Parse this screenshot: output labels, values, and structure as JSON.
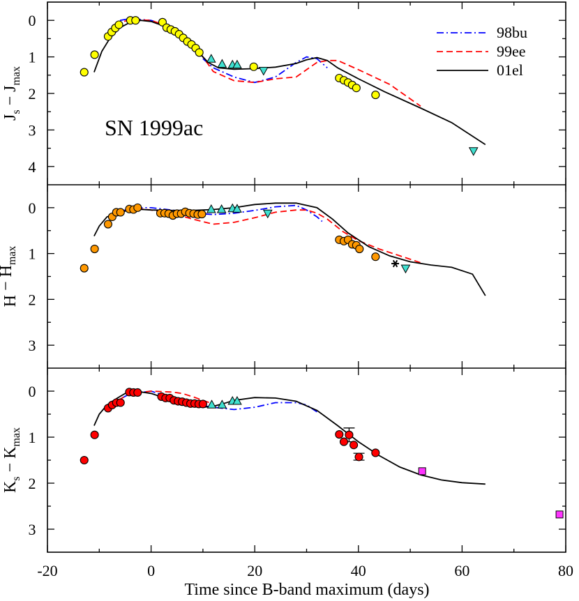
{
  "chart_data": {
    "type": "scatter",
    "x_label": "Time since B-band maximum (days)",
    "x_ticks": [
      "-20",
      "0",
      "20",
      "40",
      "60",
      "80"
    ],
    "xlim": [
      -20,
      80
    ],
    "legend": {
      "placement": "top-right",
      "entries": [
        {
          "name": "98bu",
          "color": "#0000ff",
          "style": "dash-dot"
        },
        {
          "name": "99ee",
          "color": "#ff0000",
          "style": "dashed"
        },
        {
          "name": "01el",
          "color": "#000000",
          "style": "solid"
        }
      ]
    },
    "annotation": "SN 1999ac",
    "panels": [
      {
        "id": "J",
        "ylabel_main": "J",
        "ylabel_sub1": "s",
        "ylabel_mid": " − J",
        "ylabel_sub2": "max",
        "ylim": [
          4.5,
          -0.5
        ],
        "y_ticks": [
          "0",
          "1",
          "2",
          "3",
          "4"
        ],
        "marker_color": "#ffff00",
        "circles": [
          [
            -12.9,
            1.42
          ],
          [
            -10.9,
            0.94
          ],
          [
            -8.3,
            0.44
          ],
          [
            -7.6,
            0.32
          ],
          [
            -6.9,
            0.21
          ],
          [
            -6.2,
            0.12
          ],
          [
            -4.0,
            0.0
          ],
          [
            -3.0,
            0.0
          ],
          [
            2.2,
            0.05
          ],
          [
            3.0,
            0.2
          ],
          [
            3.8,
            0.25
          ],
          [
            4.6,
            0.3
          ],
          [
            5.4,
            0.38
          ],
          [
            6.2,
            0.48
          ],
          [
            7.0,
            0.58
          ],
          [
            7.8,
            0.66
          ],
          [
            8.6,
            0.76
          ],
          [
            9.3,
            0.88
          ],
          [
            19.8,
            1.27
          ],
          [
            36.3,
            1.58
          ],
          [
            37.2,
            1.64
          ],
          [
            38.0,
            1.7
          ],
          [
            38.8,
            1.77
          ],
          [
            39.6,
            1.85
          ],
          [
            43.3,
            2.04
          ]
        ],
        "triangles_up": [
          [
            11.6,
            1.06
          ],
          [
            13.7,
            1.2
          ],
          [
            15.7,
            1.22
          ],
          [
            16.6,
            1.22
          ]
        ],
        "triangles_down": [
          [
            21.7,
            1.37
          ],
          [
            62.2,
            3.57
          ]
        ],
        "squares": [],
        "stars": [],
        "error_bars": [],
        "curves": {
          "98bu": [
            [
              -6,
              0.0
            ],
            [
              -4,
              -0.05
            ],
            [
              0,
              0.0
            ],
            [
              4,
              0.2
            ],
            [
              8,
              0.65
            ],
            [
              10,
              1.05
            ],
            [
              12,
              1.3
            ],
            [
              16,
              1.55
            ],
            [
              20,
              1.7
            ],
            [
              24,
              1.55
            ],
            [
              28,
              1.15
            ],
            [
              30,
              1.0
            ],
            [
              32,
              1.05
            ],
            [
              34,
              1.3
            ]
          ],
          "99ee": [
            [
              -7,
              0.1
            ],
            [
              -4,
              -0.02
            ],
            [
              0,
              0.0
            ],
            [
              4,
              0.2
            ],
            [
              8,
              0.6
            ],
            [
              10,
              1.0
            ],
            [
              12,
              1.4
            ],
            [
              16,
              1.65
            ],
            [
              20,
              1.7
            ],
            [
              24,
              1.6
            ],
            [
              28,
              1.55
            ],
            [
              30,
              1.35
            ],
            [
              32,
              1.15
            ],
            [
              34,
              1.1
            ],
            [
              36,
              1.1
            ],
            [
              40,
              1.35
            ],
            [
              46,
              1.75
            ],
            [
              52,
              2.35
            ]
          ],
          "01el": [
            [
              -11,
              1.42
            ],
            [
              -9.5,
              0.85
            ],
            [
              -8,
              0.5
            ],
            [
              -6,
              0.2
            ],
            [
              -4,
              0.05
            ],
            [
              -2,
              0.0
            ],
            [
              0,
              0.03
            ],
            [
              3,
              0.18
            ],
            [
              6,
              0.48
            ],
            [
              9,
              0.85
            ],
            [
              11,
              1.15
            ],
            [
              13,
              1.3
            ],
            [
              16,
              1.34
            ],
            [
              20,
              1.32
            ],
            [
              24,
              1.28
            ],
            [
              28,
              1.18
            ],
            [
              30,
              1.08
            ],
            [
              32,
              1.02
            ],
            [
              34,
              1.1
            ],
            [
              36,
              1.3
            ],
            [
              40,
              1.6
            ],
            [
              45,
              1.95
            ],
            [
              52,
              2.4
            ],
            [
              58,
              2.8
            ],
            [
              64.5,
              3.4
            ]
          ]
        }
      },
      {
        "id": "H",
        "ylabel_main": "H",
        "ylabel_sub1": "",
        "ylabel_mid": " − H",
        "ylabel_sub2": "max",
        "ylim": [
          3.5,
          -0.5
        ],
        "y_ticks": [
          "0",
          "1",
          "2",
          "3"
        ],
        "marker_color": "#ff9800",
        "circles": [
          [
            -12.9,
            1.32
          ],
          [
            -10.9,
            0.9
          ],
          [
            -8.3,
            0.36
          ],
          [
            -7.5,
            0.2
          ],
          [
            -6.7,
            0.1
          ],
          [
            -5.9,
            0.1
          ],
          [
            -4.2,
            0.03
          ],
          [
            -3.4,
            0.04
          ],
          [
            -2.6,
            0.0
          ],
          [
            1.8,
            0.12
          ],
          [
            2.6,
            0.12
          ],
          [
            3.4,
            0.13
          ],
          [
            4.2,
            0.17
          ],
          [
            5.0,
            0.13
          ],
          [
            5.8,
            0.13
          ],
          [
            6.6,
            0.09
          ],
          [
            7.4,
            0.12
          ],
          [
            8.2,
            0.13
          ],
          [
            9.0,
            0.15
          ],
          [
            9.8,
            0.14
          ],
          [
            36.3,
            0.7
          ],
          [
            37.2,
            0.73
          ],
          [
            38.0,
            0.7
          ],
          [
            38.8,
            0.8
          ],
          [
            39.6,
            0.82
          ],
          [
            40.2,
            0.9
          ],
          [
            43.3,
            1.07
          ]
        ],
        "triangles_up": [
          [
            11.6,
            0.04
          ],
          [
            13.6,
            0.04
          ],
          [
            15.7,
            0.02
          ],
          [
            16.6,
            0.03
          ]
        ],
        "triangles_down": [
          [
            22.5,
            0.12
          ],
          [
            49.1,
            1.32
          ]
        ],
        "squares": [],
        "stars": [
          [
            47.1,
            1.22
          ]
        ],
        "error_bars": [],
        "curves": {
          "98bu": [
            [
              -8,
              0.2
            ],
            [
              -4,
              0.0
            ],
            [
              0,
              0.0
            ],
            [
              4,
              0.05
            ],
            [
              8,
              0.12
            ],
            [
              12,
              0.15
            ],
            [
              16,
              0.12
            ],
            [
              20,
              0.06
            ],
            [
              24,
              -0.02
            ],
            [
              28,
              -0.05
            ],
            [
              30,
              0.05
            ],
            [
              32,
              0.2
            ],
            [
              33,
              0.3
            ]
          ],
          "99ee": [
            [
              -8,
              0.2
            ],
            [
              -4,
              0.0
            ],
            [
              0,
              0.05
            ],
            [
              4,
              0.12
            ],
            [
              8,
              0.25
            ],
            [
              12,
              0.36
            ],
            [
              16,
              0.32
            ],
            [
              20,
              0.22
            ],
            [
              24,
              0.1
            ],
            [
              28,
              0.05
            ],
            [
              30,
              0.05
            ],
            [
              32,
              0.12
            ],
            [
              34,
              0.25
            ],
            [
              37,
              0.52
            ],
            [
              40,
              0.72
            ],
            [
              44,
              0.9
            ],
            [
              48,
              1.05
            ],
            [
              52,
              1.2
            ]
          ],
          "01el": [
            [
              -11,
              0.62
            ],
            [
              -10,
              0.4
            ],
            [
              -8.5,
              0.2
            ],
            [
              -6,
              0.1
            ],
            [
              -3,
              0.03
            ],
            [
              0,
              0.05
            ],
            [
              4,
              0.06
            ],
            [
              8,
              0.06
            ],
            [
              12,
              0.04
            ],
            [
              16,
              0.0
            ],
            [
              20,
              -0.07
            ],
            [
              24,
              -0.1
            ],
            [
              28,
              -0.1
            ],
            [
              32,
              0.0
            ],
            [
              35,
              0.25
            ],
            [
              38,
              0.55
            ],
            [
              42,
              0.85
            ],
            [
              46,
              1.05
            ],
            [
              50,
              1.18
            ],
            [
              54,
              1.25
            ],
            [
              58,
              1.3
            ],
            [
              62,
              1.45
            ],
            [
              64.5,
              1.92
            ]
          ]
        }
      },
      {
        "id": "K",
        "ylabel_main": "K",
        "ylabel_sub1": "s",
        "ylabel_mid": " − K",
        "ylabel_sub2": "max",
        "ylim": [
          3.5,
          -0.5
        ],
        "y_ticks": [
          "0",
          "1",
          "2",
          "3"
        ],
        "marker_color": "#ff0000",
        "circles": [
          [
            -12.9,
            1.5
          ],
          [
            -10.9,
            0.95
          ],
          [
            -8.3,
            0.37
          ],
          [
            -7.5,
            0.3
          ],
          [
            -6.7,
            0.25
          ],
          [
            -5.9,
            0.25
          ],
          [
            -4.2,
            0.02
          ],
          [
            -3.4,
            0.03
          ],
          [
            -2.6,
            0.03
          ],
          [
            2.0,
            0.12
          ],
          [
            2.8,
            0.15
          ],
          [
            3.6,
            0.15
          ],
          [
            4.4,
            0.2
          ],
          [
            5.2,
            0.22
          ],
          [
            6.0,
            0.23
          ],
          [
            6.8,
            0.25
          ],
          [
            7.6,
            0.27
          ],
          [
            8.4,
            0.27
          ],
          [
            9.2,
            0.28
          ],
          [
            10.0,
            0.28
          ],
          [
            36.3,
            0.94
          ],
          [
            37.2,
            1.1
          ],
          [
            38.2,
            0.95
          ],
          [
            39.1,
            1.17
          ],
          [
            40.1,
            1.43
          ],
          [
            43.3,
            1.34
          ]
        ],
        "triangles_up": [
          [
            11.7,
            0.3
          ],
          [
            13.7,
            0.3
          ],
          [
            15.7,
            0.22
          ],
          [
            16.6,
            0.22
          ]
        ],
        "triangles_down": [],
        "squares": [
          [
            52.3,
            1.74
          ],
          [
            78.8,
            2.68
          ]
        ],
        "stars": [],
        "error_bars": [
          [
            38.2,
            0.8,
            1.1
          ],
          [
            40.1,
            1.35,
            1.5
          ]
        ],
        "curves": {
          "98bu": [
            [
              -8,
              0.3
            ],
            [
              -4,
              0.05
            ],
            [
              0,
              0.0
            ],
            [
              4,
              0.15
            ],
            [
              8,
              0.28
            ],
            [
              12,
              0.35
            ],
            [
              16,
              0.4
            ],
            [
              20,
              0.35
            ],
            [
              24,
              0.25
            ],
            [
              28,
              0.25
            ],
            [
              30,
              0.3
            ],
            [
              32,
              0.45
            ]
          ],
          "99ee": [
            [
              -8,
              0.3
            ],
            [
              -4,
              0.05
            ],
            [
              0,
              0.0
            ],
            [
              4,
              0.02
            ],
            [
              6,
              0.05
            ],
            [
              8,
              0.12
            ],
            [
              10,
              0.2
            ],
            [
              12,
              0.28
            ]
          ],
          "01el": [
            [
              -11,
              0.75
            ],
            [
              -10,
              0.5
            ],
            [
              -8.5,
              0.3
            ],
            [
              -6.5,
              0.15
            ],
            [
              -5,
              0.05
            ],
            [
              -3,
              0.0
            ],
            [
              0,
              0.05
            ],
            [
              4,
              0.2
            ],
            [
              8,
              0.3
            ],
            [
              10,
              0.35
            ],
            [
              12,
              0.33
            ],
            [
              14,
              0.27
            ],
            [
              16,
              0.2
            ],
            [
              20,
              0.14
            ],
            [
              24,
              0.15
            ],
            [
              28,
              0.22
            ],
            [
              32,
              0.42
            ],
            [
              36,
              0.75
            ],
            [
              40,
              1.1
            ],
            [
              44,
              1.4
            ],
            [
              48,
              1.65
            ],
            [
              52,
              1.82
            ],
            [
              56,
              1.93
            ],
            [
              60,
              1.99
            ],
            [
              64.5,
              2.02
            ]
          ]
        }
      }
    ]
  }
}
